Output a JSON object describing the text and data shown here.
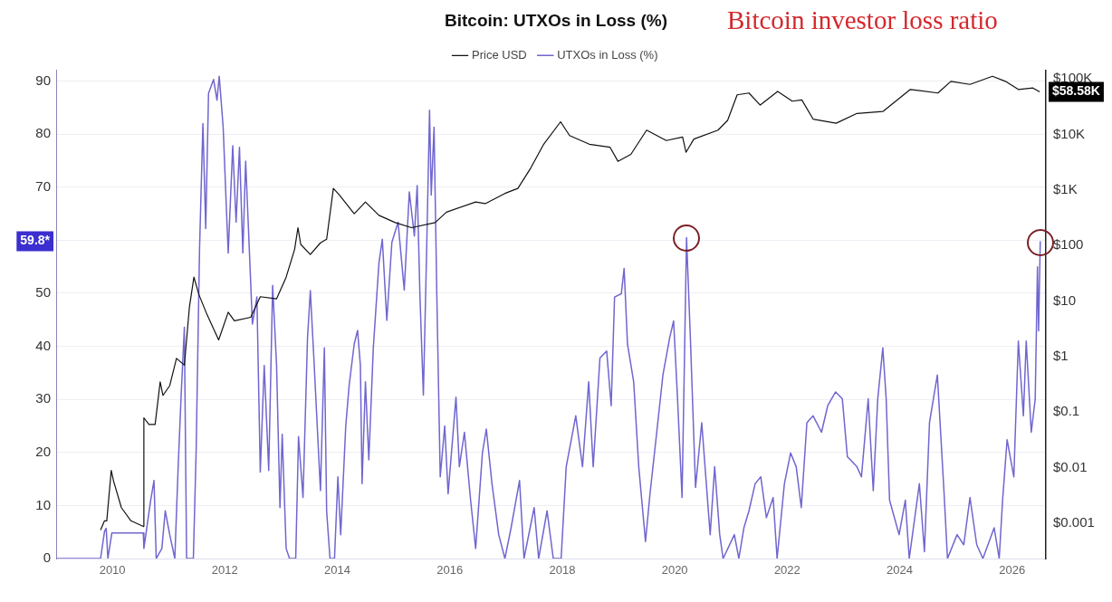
{
  "chart_data": {
    "type": "line",
    "title": "Bitcoin: UTXOs in Loss (%)",
    "annotations": [
      "Bitcoin investor loss ratio",
      "$58.58K",
      "59.8*"
    ],
    "series": [
      {
        "name": "Price USD",
        "color": "#111111",
        "axis": "y2",
        "x": [
          2009.79,
          2009.86,
          2009.9,
          2009.98,
          2010.02,
          2010.16,
          2010.33,
          2010.55,
          2010.56,
          2010.65,
          2010.76,
          2010.85,
          2010.9,
          2011.02,
          2011.14,
          2011.28,
          2011.37,
          2011.45,
          2011.54,
          2011.68,
          2011.89,
          2012.06,
          2012.17,
          2012.46,
          2012.63,
          2012.92,
          2013.09,
          2013.24,
          2013.3,
          2013.35,
          2013.52,
          2013.7,
          2013.81,
          2013.93,
          2014.04,
          2014.3,
          2014.5,
          2014.74,
          2015.03,
          2015.32,
          2015.74,
          2015.94,
          2016.46,
          2016.63,
          2016.98,
          2017.21,
          2017.44,
          2017.67,
          2017.97,
          2018.13,
          2018.48,
          2018.85,
          2018.99,
          2019.22,
          2019.5,
          2019.85,
          2020.14,
          2020.2,
          2020.34,
          2020.77,
          2020.94,
          2021.11,
          2021.32,
          2021.52,
          2021.83,
          2022.09,
          2022.26,
          2022.46,
          2022.87,
          2023.24,
          2023.7,
          2024.19,
          2024.68,
          2024.91,
          2025.25,
          2025.65,
          2025.88,
          2026.11,
          2026.37,
          2026.49
        ],
        "values": [
          0.00075,
          0.0011,
          0.0011,
          0.0089,
          0.0058,
          0.0019,
          0.0011,
          0.00087,
          0.079,
          0.06,
          0.06,
          0.35,
          0.2,
          0.3,
          0.93,
          0.7,
          7.8,
          27,
          13,
          5.8,
          2,
          6.3,
          4.4,
          5.1,
          12,
          11,
          27,
          85,
          210,
          105,
          69,
          112,
          130,
          1070,
          810,
          375,
          610,
          350,
          260,
          210,
          260,
          400,
          610,
          570,
          870,
          1070,
          2500,
          6700,
          17000,
          9600,
          6700,
          5900,
          3300,
          4400,
          12000,
          7800,
          9000,
          4800,
          8300,
          12000,
          18000,
          52000,
          56000,
          34000,
          60000,
          40000,
          42000,
          19000,
          16000,
          24000,
          26000,
          65000,
          56000,
          91000,
          80000,
          112000,
          91000,
          65000,
          69000,
          58580
        ]
      },
      {
        "name": "UTXOs in Loss (%)",
        "color": "#7066cf",
        "x": [
          2009.0,
          2009.79,
          2009.86,
          2009.89,
          2009.92,
          2009.99,
          2010.55,
          2010.56,
          2010.68,
          2010.74,
          2010.78,
          2010.88,
          2010.94,
          2011.02,
          2011.11,
          2011.17,
          2011.22,
          2011.28,
          2011.32,
          2011.44,
          2011.49,
          2011.55,
          2011.61,
          2011.66,
          2011.71,
          2011.8,
          2011.86,
          2011.9,
          2011.97,
          2012.03,
          2012.06,
          2012.14,
          2012.2,
          2012.26,
          2012.32,
          2012.37,
          2012.49,
          2012.57,
          2012.63,
          2012.7,
          2012.78,
          2012.85,
          2012.92,
          2012.98,
          2013.02,
          2013.09,
          2013.15,
          2013.26,
          2013.31,
          2013.39,
          2013.47,
          2013.52,
          2013.58,
          2013.7,
          2013.77,
          2013.81,
          2013.87,
          2013.95,
          2014.01,
          2014.06,
          2014.15,
          2014.21,
          2014.3,
          2014.36,
          2014.41,
          2014.44,
          2014.5,
          2014.56,
          2014.64,
          2014.74,
          2014.8,
          2014.88,
          2014.97,
          2015.08,
          2015.19,
          2015.28,
          2015.37,
          2015.42,
          2015.47,
          2015.53,
          2015.59,
          2015.64,
          2015.67,
          2015.72,
          2015.77,
          2015.83,
          2015.91,
          2015.97,
          2016.11,
          2016.17,
          2016.26,
          2016.37,
          2016.46,
          2016.58,
          2016.65,
          2016.75,
          2016.87,
          2016.98,
          2017.09,
          2017.24,
          2017.32,
          2017.5,
          2017.58,
          2017.73,
          2017.84,
          2017.98,
          2018.07,
          2018.24,
          2018.36,
          2018.47,
          2018.55,
          2018.67,
          2018.79,
          2018.87,
          2018.93,
          2019.05,
          2019.1,
          2019.16,
          2019.27,
          2019.36,
          2019.48,
          2019.56,
          2019.68,
          2019.79,
          2019.91,
          2019.98,
          2020.05,
          2020.13,
          2020.21,
          2020.28,
          2020.37,
          2020.48,
          2020.63,
          2020.71,
          2020.8,
          2020.86,
          2021.06,
          2021.14,
          2021.23,
          2021.32,
          2021.43,
          2021.53,
          2021.63,
          2021.75,
          2021.82,
          2021.95,
          2022.06,
          2022.16,
          2022.25,
          2022.35,
          2022.46,
          2022.61,
          2022.72,
          2022.86,
          2022.98,
          2023.07,
          2023.24,
          2023.32,
          2023.44,
          2023.53,
          2023.61,
          2023.7,
          2023.76,
          2023.82,
          2023.99,
          2024.1,
          2024.17,
          2024.35,
          2024.44,
          2024.53,
          2024.67,
          2024.79,
          2024.85,
          2025.02,
          2025.14,
          2025.25,
          2025.37,
          2025.48,
          2025.68,
          2025.77,
          2025.83,
          2025.91,
          2026.03,
          2026.11,
          2026.2,
          2026.25,
          2026.34,
          2026.41,
          2026.45,
          2026.47,
          2026.5
        ],
        "values": [
          0,
          0,
          5.1,
          5.7,
          0,
          4.8,
          4.8,
          1.9,
          10.9,
          14.7,
          0,
          1.9,
          9,
          4.5,
          0,
          17.3,
          30.1,
          43.6,
          0,
          0,
          20.5,
          58.3,
          82,
          62.2,
          87.7,
          90.3,
          86.4,
          90.9,
          81.3,
          65.3,
          57.6,
          77.8,
          63.4,
          77.5,
          57.6,
          74.9,
          44.2,
          49.3,
          16.3,
          36.4,
          16.6,
          51.5,
          36.4,
          9.6,
          23.4,
          1.9,
          0,
          0,
          23,
          11.5,
          41.6,
          50.5,
          38.4,
          12.8,
          39.7,
          8.9,
          0,
          0,
          15.4,
          4.5,
          25,
          32.6,
          40.4,
          43,
          36.5,
          14.1,
          33.3,
          18.6,
          39.7,
          55.7,
          60.2,
          44.9,
          59.6,
          63.4,
          50.6,
          69.1,
          60.8,
          70.3,
          49.3,
          30.8,
          58.9,
          84.5,
          68.5,
          81.3,
          49.3,
          15.4,
          25,
          12.2,
          30.4,
          17.3,
          23.8,
          11,
          1.9,
          19.9,
          24.4,
          14.1,
          4.5,
          0,
          5.8,
          14.7,
          0,
          9.6,
          0,
          9,
          0,
          0,
          17.3,
          26.9,
          17.3,
          33.3,
          17.3,
          37.8,
          39.1,
          28.8,
          49.3,
          49.9,
          54.7,
          40.4,
          33.3,
          17.3,
          3.2,
          12.2,
          23.8,
          34.6,
          41.6,
          44.8,
          30.1,
          11.5,
          60.5,
          41,
          13.4,
          25.6,
          4.5,
          17.3,
          4.5,
          0,
          4.5,
          0,
          5.8,
          9,
          14.1,
          15.4,
          7.7,
          11.5,
          0,
          14.1,
          19.9,
          17.3,
          9.6,
          25.6,
          26.9,
          23.8,
          28.8,
          31.4,
          30.1,
          19.2,
          17.3,
          15.4,
          30.1,
          12.8,
          30.1,
          39.7,
          30.1,
          11,
          4.5,
          11,
          0,
          14.1,
          1.3,
          25.6,
          34.6,
          12.2,
          0,
          4.5,
          2.6,
          11.5,
          2.6,
          0,
          5.8,
          0,
          11,
          22.4,
          15.4,
          41,
          26.9,
          41,
          23.8,
          30.1,
          55,
          42.9,
          59.8
        ]
      }
    ],
    "xlim": [
      2009,
      2026.6
    ],
    "xticks": [
      2010,
      2012,
      2014,
      2016,
      2018,
      2020,
      2022,
      2024,
      2026
    ],
    "ylim": [
      0,
      92
    ],
    "yticks": [
      0,
      10,
      20,
      30,
      40,
      50,
      {
        "value": 60,
        "label": null
      },
      70,
      80,
      90
    ],
    "y2lim": [
      0.00023,
      143000
    ],
    "y2ticks": [
      {
        "value": 0.001,
        "label": "$0.001"
      },
      {
        "value": 0.01,
        "label": "$0.01"
      },
      {
        "value": 0.1,
        "label": "$0.1"
      },
      {
        "value": 1,
        "label": "$1"
      },
      {
        "value": 10,
        "label": "$10"
      },
      {
        "value": 100,
        "label": "$100"
      },
      {
        "value": 1000,
        "label": "$1K"
      },
      {
        "value": 10000,
        "label": "$10K"
      },
      {
        "value": 100000,
        "label": "$100K"
      }
    ],
    "log": "y2",
    "grid": "y",
    "legend": "top"
  }
}
